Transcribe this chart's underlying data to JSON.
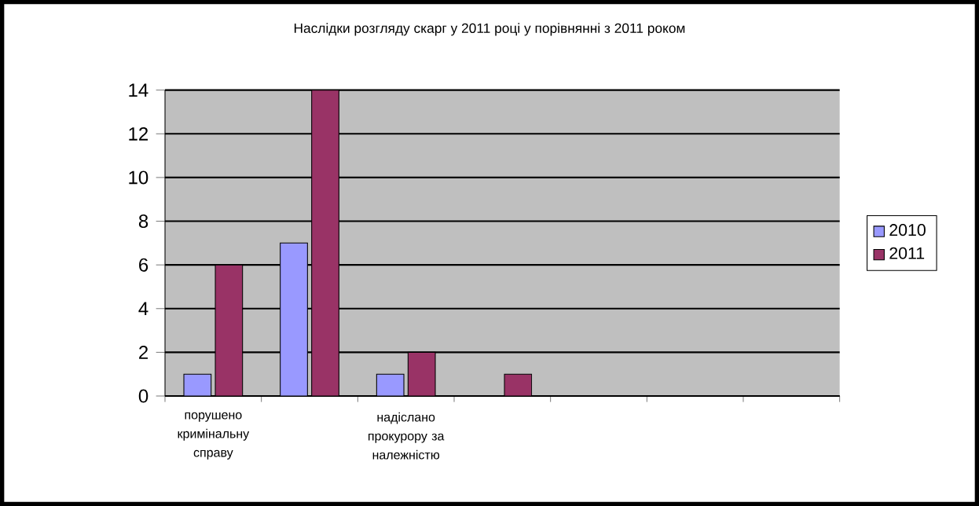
{
  "chart_data": {
    "type": "bar",
    "title": "Наслідки розгляду скарг у  2011 році у порівнянні з 2011 роком",
    "categories": [
      "порушено кримінальну справу",
      null,
      "надіслано прокурору за належністю",
      null,
      null,
      null,
      null
    ],
    "series": [
      {
        "name": "2010",
        "color": "#9999ff",
        "values": [
          1,
          7,
          1,
          0,
          null,
          null,
          null
        ]
      },
      {
        "name": "2011",
        "color": "#993366",
        "values": [
          6,
          14,
          2,
          1,
          null,
          null,
          null
        ]
      }
    ],
    "ylim": [
      0,
      14
    ],
    "yticks": [
      0,
      2,
      4,
      6,
      8,
      10,
      12,
      14
    ],
    "grid": "y",
    "legend": "right"
  }
}
